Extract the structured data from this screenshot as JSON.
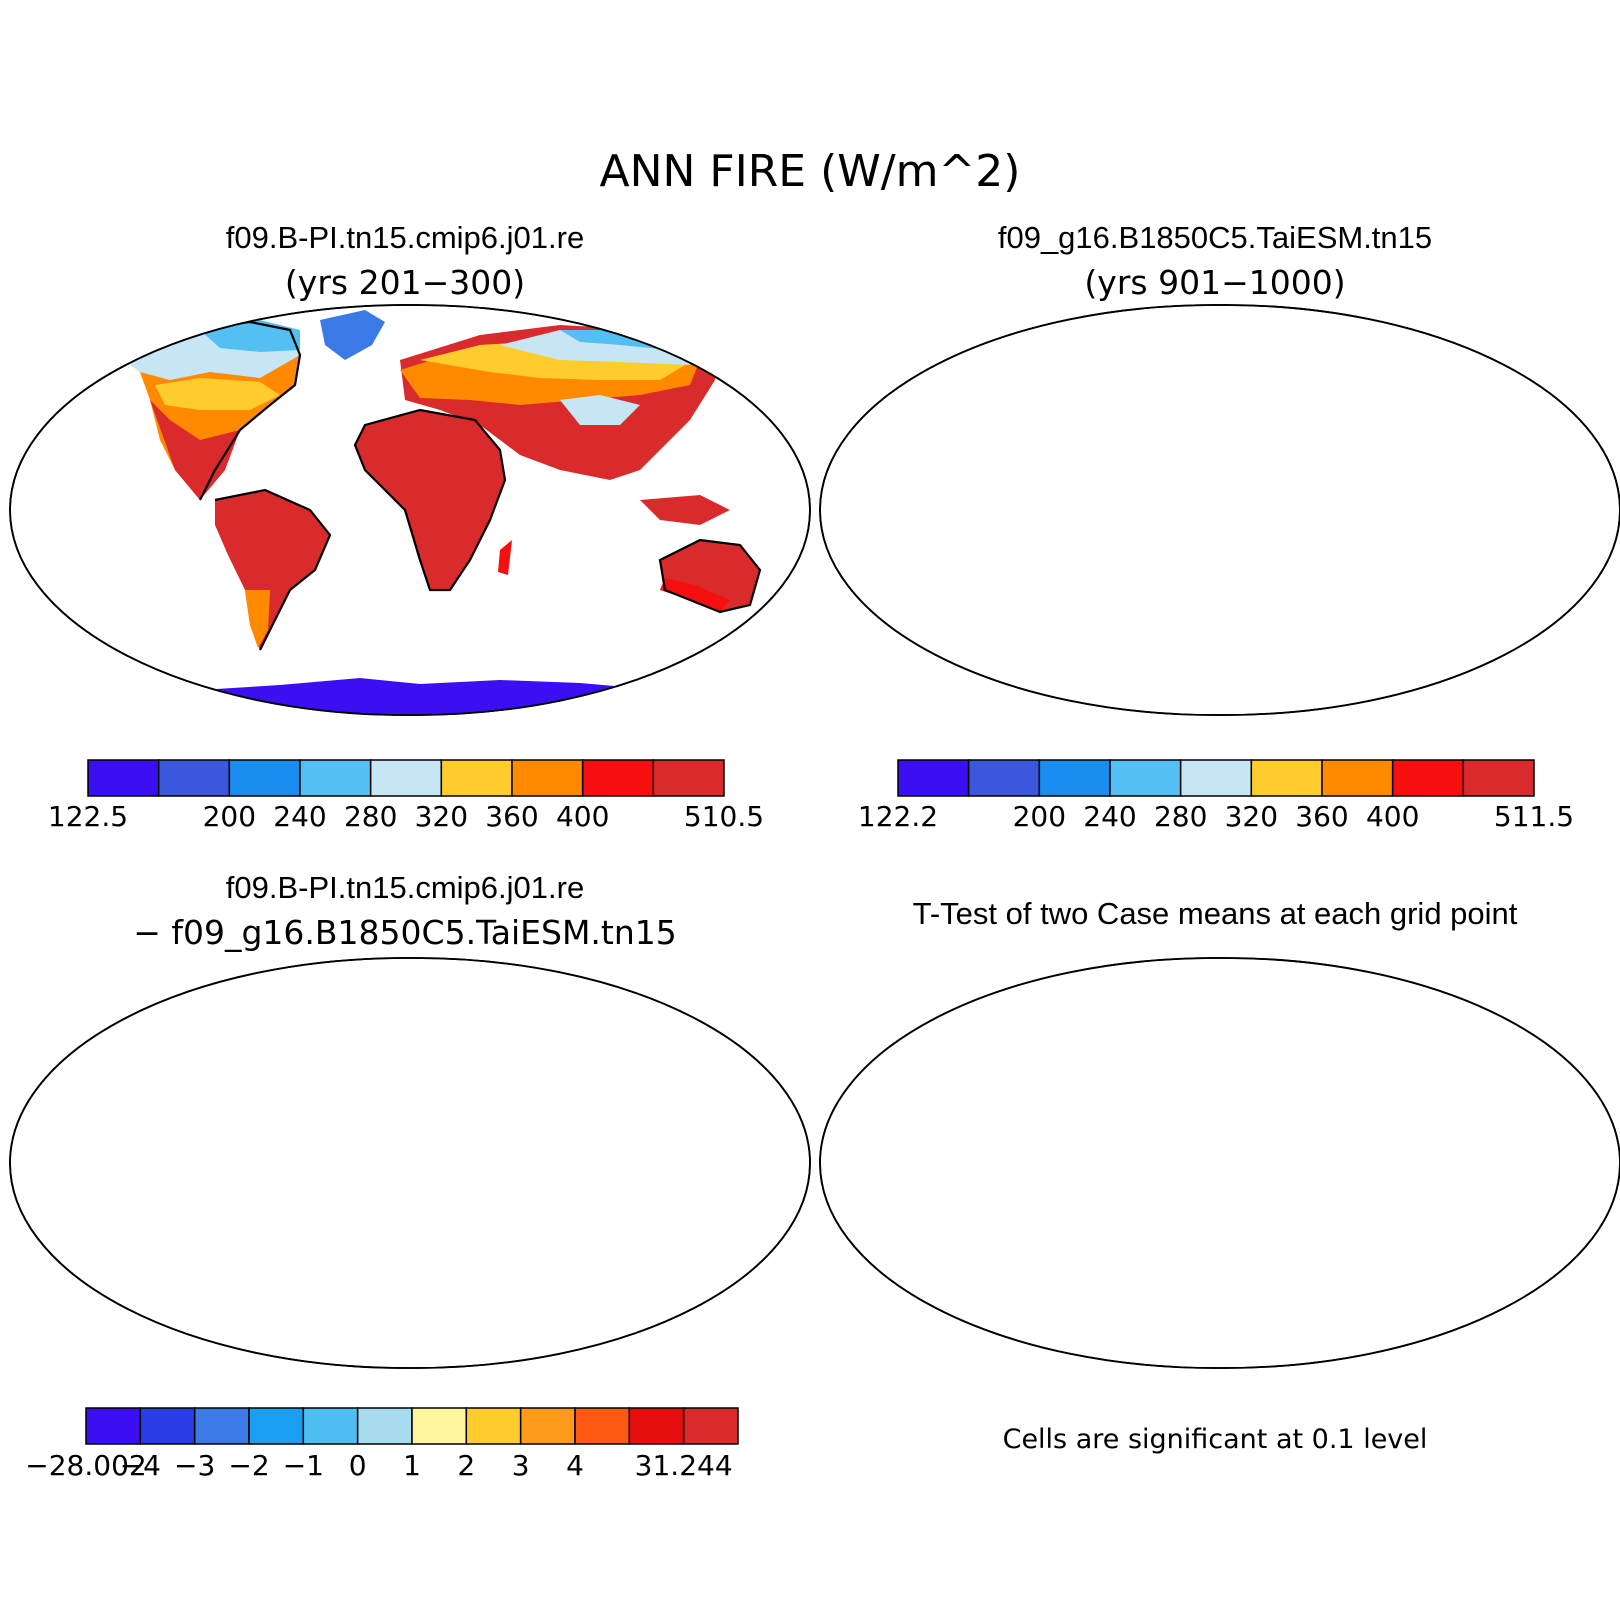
{
  "figure": {
    "title": "ANN FIRE (W/m^2)"
  },
  "panels": [
    {
      "title": "f09.B-PI.tn15.cmip6.j01.re",
      "subtitle": "(yrs 201−300)",
      "colorbar": {
        "colors": [
          "#3b0ff2",
          "#3b57de",
          "#1a8ef0",
          "#54bff2",
          "#c7e6f5",
          "#ffcc2e",
          "#ff8a00",
          "#f50f0f",
          "#d92b2b"
        ],
        "labels": [
          "122.5",
          "",
          "200",
          "240",
          "280",
          "320",
          "360",
          "400",
          "",
          "510.5"
        ]
      }
    },
    {
      "title": "f09_g16.B1850C5.TaiESM.tn15",
      "subtitle": "(yrs 901−1000)",
      "colorbar": {
        "colors": [
          "#3b0ff2",
          "#3b57de",
          "#1a8ef0",
          "#54bff2",
          "#c7e6f5",
          "#ffcc2e",
          "#ff8a00",
          "#f50f0f",
          "#d92b2b"
        ],
        "labels": [
          "122.2",
          "",
          "200",
          "240",
          "280",
          "320",
          "360",
          "400",
          "",
          "511.5"
        ]
      }
    },
    {
      "title": "f09.B-PI.tn15.cmip6.j01.re",
      "subtitle": "− f09_g16.B1850C5.TaiESM.tn15",
      "colorbar": {
        "colors": [
          "#3b0ff2",
          "#2b3ee6",
          "#3b7ae6",
          "#1a9ff2",
          "#4dbff2",
          "#a8ddf0",
          "#fff59e",
          "#ffcc2e",
          "#ff9a1a",
          "#ff5a14",
          "#e60f0f",
          "#d92b2b"
        ],
        "labels": [
          "−28.002",
          "−4",
          "−3",
          "−2",
          "−1",
          "0",
          "1",
          "2",
          "3",
          "4",
          "",
          "31.244"
        ]
      }
    },
    {
      "title": "T-Test of two Case means at each grid point",
      "note": "Cells are significant at 0.1 level"
    }
  ]
}
